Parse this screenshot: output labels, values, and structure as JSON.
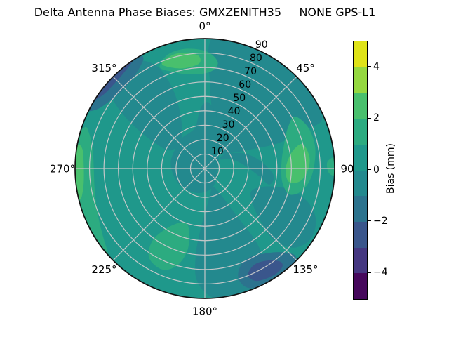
{
  "title": "Delta Antenna Phase Biases: GMXZENITH35     NONE GPS-L1",
  "chart_data": {
    "type": "polar_contour",
    "title": "Delta Antenna Phase Biases: GMXZENITH35     NONE GPS-L1",
    "angular_axis": {
      "zero_location": "N",
      "direction": "clockwise",
      "ticks_deg": [
        0,
        45,
        90,
        135,
        180,
        225,
        270,
        315
      ],
      "tick_labels": [
        "0°",
        "45°",
        "90",
        "135°",
        "180°",
        "225°",
        "270°",
        "315°"
      ]
    },
    "radial_axis": {
      "range": [
        0,
        90
      ],
      "ticks": [
        10,
        20,
        30,
        40,
        50,
        60,
        70,
        80,
        90
      ],
      "tick_labels": [
        "10",
        "20",
        "30",
        "40",
        "50",
        "60",
        "70",
        "80",
        "90"
      ],
      "tick_label_angle_deg": 22.5
    },
    "colorbar": {
      "label": "Bias (mm)",
      "range_mm": [
        -5,
        5
      ],
      "level_step_mm": 1,
      "tick_values": [
        4,
        2,
        0,
        -2,
        -4
      ],
      "tick_labels": [
        "4",
        "2",
        "0",
        "−2",
        "−4"
      ],
      "band_colors_top_to_bottom": [
        "#dfe318",
        "#95d840",
        "#49c06d",
        "#2cab80",
        "#1f988b",
        "#23898e",
        "#2c738e",
        "#3a568c",
        "#453781",
        "#46085c"
      ]
    },
    "grid_color": "#c4c7c8",
    "edge_color": "#111111",
    "background_band": {
      "bias_mm": "0 to +1",
      "color": "#1f988b"
    },
    "contour_patches": [
      {
        "name": "northeast-sector-low",
        "bias_mm": "-1 to 0",
        "color": "#23898e",
        "points_az_r": [
          [
            3,
            90
          ],
          [
            4,
            55
          ],
          [
            10,
            34
          ],
          [
            22,
            20
          ],
          [
            40,
            14
          ],
          [
            58,
            20
          ],
          [
            68,
            36
          ],
          [
            71,
            55
          ],
          [
            69,
            75
          ],
          [
            66,
            89
          ],
          [
            45,
            91
          ],
          [
            20,
            91
          ]
        ]
      },
      {
        "name": "east-inner-low",
        "bias_mm": "-1 to 0",
        "color": "#23898e",
        "points_az_r": [
          [
            58,
            12
          ],
          [
            72,
            20
          ],
          [
            86,
            28
          ],
          [
            98,
            38
          ],
          [
            104,
            46
          ],
          [
            96,
            48
          ],
          [
            84,
            40
          ],
          [
            70,
            30
          ],
          [
            56,
            18
          ]
        ]
      },
      {
        "name": "center-low",
        "bias_mm": "-1 to 0",
        "color": "#23898e",
        "points_az_r": [
          [
            348,
            30
          ],
          [
            356,
            42
          ],
          [
            3,
            46
          ],
          [
            12,
            38
          ],
          [
            25,
            24
          ],
          [
            45,
            14
          ],
          [
            70,
            10
          ],
          [
            100,
            9
          ],
          [
            135,
            11
          ],
          [
            165,
            15
          ],
          [
            200,
            18
          ],
          [
            240,
            21
          ],
          [
            280,
            24
          ],
          [
            320,
            26
          ],
          [
            338,
            27
          ]
        ]
      },
      {
        "name": "northwest-mid-low",
        "bias_mm": "-1 to 0",
        "color": "#23898e",
        "points_az_r": [
          [
            296,
            30
          ],
          [
            299,
            48
          ],
          [
            303,
            66
          ],
          [
            308,
            82
          ],
          [
            316,
            90
          ],
          [
            327,
            89
          ],
          [
            335,
            78
          ],
          [
            338,
            60
          ],
          [
            336,
            42
          ],
          [
            328,
            30
          ],
          [
            314,
            24
          ],
          [
            303,
            25
          ]
        ]
      },
      {
        "name": "south-sector-low",
        "bias_mm": "-1 to 0",
        "color": "#23898e",
        "points_az_r": [
          [
            150,
            18
          ],
          [
            146,
            40
          ],
          [
            145,
            62
          ],
          [
            148,
            80
          ],
          [
            152,
            91
          ],
          [
            164,
            92
          ],
          [
            176,
            90
          ],
          [
            184,
            78
          ],
          [
            186,
            60
          ],
          [
            184,
            42
          ],
          [
            178,
            28
          ],
          [
            168,
            18
          ],
          [
            158,
            14
          ]
        ]
      },
      {
        "name": "southeast-mid-low",
        "bias_mm": "-1 to 0",
        "color": "#23898e",
        "points_az_r": [
          [
            106,
            45
          ],
          [
            104,
            60
          ],
          [
            108,
            75
          ],
          [
            115,
            85
          ],
          [
            124,
            88
          ],
          [
            132,
            82
          ],
          [
            136,
            68
          ],
          [
            133,
            52
          ],
          [
            125,
            40
          ],
          [
            115,
            36
          ]
        ]
      },
      {
        "name": "north-high-ring",
        "bias_mm": "+1 to +2",
        "color": "#2cab80",
        "points_az_r": [
          [
            336,
            77
          ],
          [
            342,
            83
          ],
          [
            351,
            84
          ],
          [
            1,
            81
          ],
          [
            7,
            74
          ],
          [
            3,
            67
          ],
          [
            351,
            66
          ],
          [
            341,
            71
          ]
        ]
      },
      {
        "name": "north-high-core",
        "bias_mm": "+2 to +3",
        "color": "#49c06d",
        "points_az_r": [
          [
            338,
            79
          ],
          [
            346,
            82
          ],
          [
            356,
            79
          ],
          [
            357,
            73
          ],
          [
            348,
            71
          ],
          [
            340,
            75
          ]
        ]
      },
      {
        "name": "east-high-streak",
        "bias_mm": "+1 to +2",
        "color": "#2cab80",
        "points_az_r": [
          [
            60,
            72
          ],
          [
            68,
            77
          ],
          [
            78,
            78
          ],
          [
            88,
            76
          ],
          [
            97,
            73
          ],
          [
            104,
            68
          ],
          [
            107,
            61
          ],
          [
            101,
            55
          ],
          [
            92,
            53
          ],
          [
            82,
            54
          ],
          [
            72,
            58
          ],
          [
            64,
            64
          ]
        ]
      },
      {
        "name": "east-high-core",
        "bias_mm": "+2 to +3",
        "color": "#49c06d",
        "points_az_r": [
          [
            76,
            70
          ],
          [
            84,
            73
          ],
          [
            92,
            71
          ],
          [
            98,
            66
          ],
          [
            99,
            59
          ],
          [
            92,
            56
          ],
          [
            84,
            58
          ],
          [
            78,
            63
          ]
        ]
      },
      {
        "name": "east-rim-sliver",
        "bias_mm": "+1 to +2",
        "color": "#2cab80",
        "points_az_r": [
          [
            85,
            91
          ],
          [
            87,
            85
          ],
          [
            92,
            86
          ],
          [
            93,
            91
          ],
          [
            89,
            92
          ]
        ]
      },
      {
        "name": "west-rim-crescent",
        "bias_mm": "+1 to +2",
        "color": "#2cab80",
        "points_az_r": [
          [
            228,
            90
          ],
          [
            236,
            85
          ],
          [
            246,
            81
          ],
          [
            258,
            78
          ],
          [
            270,
            77
          ],
          [
            280,
            79
          ],
          [
            287,
            84
          ],
          [
            289,
            88
          ],
          [
            282,
            92
          ],
          [
            268,
            93
          ],
          [
            252,
            93
          ],
          [
            238,
            92
          ],
          [
            230,
            92
          ]
        ]
      },
      {
        "name": "west-rim-core",
        "bias_mm": "+2 to +3",
        "color": "#49c06d",
        "points_az_r": [
          [
            256,
            89
          ],
          [
            262,
            85
          ],
          [
            271,
            84
          ],
          [
            279,
            86
          ],
          [
            280,
            90
          ],
          [
            270,
            92
          ],
          [
            260,
            92
          ]
        ]
      },
      {
        "name": "southwest-inner-high",
        "bias_mm": "+1 to +2",
        "color": "#2cab80",
        "points_az_r": [
          [
            194,
            45
          ],
          [
            192,
            58
          ],
          [
            196,
            70
          ],
          [
            203,
            76
          ],
          [
            212,
            73
          ],
          [
            216,
            62
          ],
          [
            213,
            50
          ],
          [
            206,
            42
          ],
          [
            199,
            40
          ]
        ]
      },
      {
        "name": "northwest-rim-crescent",
        "bias_mm": "-2 to -1",
        "color": "#2c738e",
        "points_az_r": [
          [
            296,
            91
          ],
          [
            299,
            85
          ],
          [
            305,
            81
          ],
          [
            313,
            79
          ],
          [
            321,
            80
          ],
          [
            328,
            84
          ],
          [
            331,
            88
          ],
          [
            329,
            92
          ],
          [
            319,
            93
          ],
          [
            307,
            93
          ],
          [
            299,
            93
          ]
        ]
      },
      {
        "name": "northwest-rim-core",
        "bias_mm": "-3 to -2",
        "color": "#3a568c",
        "points_az_r": [
          [
            301,
            91
          ],
          [
            306,
            87
          ],
          [
            313,
            86
          ],
          [
            320,
            87
          ],
          [
            326,
            90
          ],
          [
            322,
            93
          ],
          [
            312,
            93
          ],
          [
            304,
            93
          ]
        ]
      },
      {
        "name": "southeast-rim-patch",
        "bias_mm": "-2 to -1",
        "color": "#2c738e",
        "points_az_r": [
          [
            134,
            86
          ],
          [
            138,
            78
          ],
          [
            145,
            72
          ],
          [
            153,
            69
          ],
          [
            160,
            72
          ],
          [
            163,
            80
          ],
          [
            160,
            88
          ],
          [
            152,
            91
          ],
          [
            142,
            92
          ],
          [
            136,
            91
          ]
        ]
      },
      {
        "name": "southeast-rim-core",
        "bias_mm": "-3 to -2",
        "color": "#3a568c",
        "points_az_r": [
          [
            141,
            83
          ],
          [
            146,
            77
          ],
          [
            153,
            75
          ],
          [
            158,
            80
          ],
          [
            155,
            86
          ],
          [
            147,
            88
          ],
          [
            142,
            87
          ]
        ]
      }
    ]
  }
}
